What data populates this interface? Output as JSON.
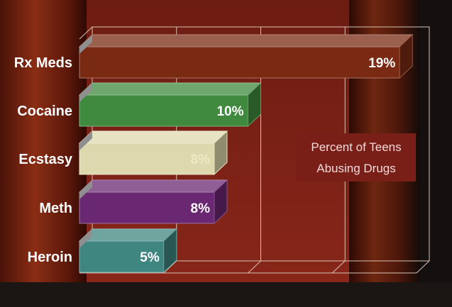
{
  "chart_data": {
    "type": "bar",
    "orientation": "horizontal",
    "categories": [
      "Rx Meds",
      "Cocaine",
      "Ecstasy",
      "Meth",
      "Heroin"
    ],
    "series": [
      {
        "values": [
          19,
          10,
          8,
          8,
          5
        ],
        "value_labels": [
          "19%",
          "10%",
          "8%",
          "8%",
          "5%"
        ],
        "colors": [
          "#7a2a12",
          "#3f8a3e",
          "#ddd8ad",
          "#6a2872",
          "#3f8580"
        ],
        "label_colors": [
          "#ffffff",
          "#ffffff",
          "#efe9c6",
          "#ffffff",
          "#ffffff"
        ]
      }
    ],
    "xlim": [
      0,
      20
    ],
    "grid": true,
    "three_d": true,
    "annotations": [
      "Percent of Teens",
      "Abusing Drugs"
    ]
  },
  "colors": {
    "background": "#7a2216",
    "curtain_dark": "#3a0c06",
    "wall_right": "#1a1412",
    "floor": "#1b1614",
    "grid_line": "#d9c3b3",
    "annotation_box": "#7a1e18"
  }
}
